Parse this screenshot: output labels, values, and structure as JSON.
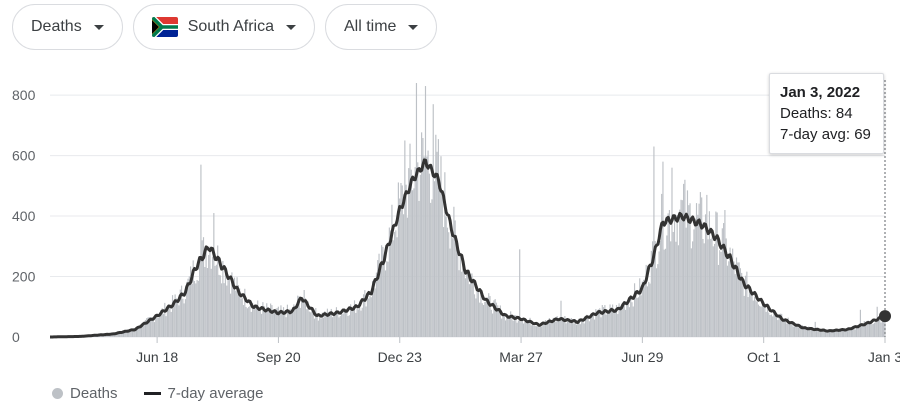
{
  "filters": {
    "metric": "Deaths",
    "country": "South Africa",
    "range": "All time"
  },
  "tooltip": {
    "date": "Jan 3, 2022",
    "deaths_line": "Deaths: 84",
    "avg_line": "7-day avg: 69"
  },
  "legend": {
    "series1": "Deaths",
    "series2": "7-day average"
  },
  "colors": {
    "bars": "#bdc1c6",
    "avg_line": "#333333",
    "grid": "#e8eaed",
    "flag_green": "#007a4d",
    "flag_red": "#de3831",
    "flag_blue": "#002395",
    "flag_yellow": "#ffb612"
  },
  "chart_data": {
    "type": "bar",
    "ylim": [
      0,
      850
    ],
    "yticks": [
      0,
      200,
      400,
      600,
      800
    ],
    "x_start": "2020-03-27",
    "x_end": "2022-01-03",
    "xticks": [
      {
        "label": "Jun 18",
        "date": "2020-06-18"
      },
      {
        "label": "Sep 20",
        "date": "2020-09-20"
      },
      {
        "label": "Dec 23",
        "date": "2020-12-23"
      },
      {
        "label": "Mar 27",
        "date": "2021-03-27"
      },
      {
        "label": "Jun 29",
        "date": "2021-06-29"
      },
      {
        "label": "Oct 1",
        "date": "2021-10-01"
      },
      {
        "label": "Jan 3",
        "date": "2022-01-03"
      }
    ],
    "series": [
      {
        "name": "7-day average",
        "points": [
          [
            "2020-03-27",
            0
          ],
          [
            "2020-04-20",
            2
          ],
          [
            "2020-05-15",
            10
          ],
          [
            "2020-06-01",
            25
          ],
          [
            "2020-06-18",
            70
          ],
          [
            "2020-07-01",
            110
          ],
          [
            "2020-07-10",
            150
          ],
          [
            "2020-07-18",
            230
          ],
          [
            "2020-07-28",
            300
          ],
          [
            "2020-08-08",
            230
          ],
          [
            "2020-08-20",
            150
          ],
          [
            "2020-09-01",
            100
          ],
          [
            "2020-09-20",
            80
          ],
          [
            "2020-10-01",
            85
          ],
          [
            "2020-10-08",
            130
          ],
          [
            "2020-10-20",
            70
          ],
          [
            "2020-11-05",
            80
          ],
          [
            "2020-11-20",
            100
          ],
          [
            "2020-12-01",
            150
          ],
          [
            "2020-12-10",
            250
          ],
          [
            "2020-12-23",
            420
          ],
          [
            "2021-01-02",
            520
          ],
          [
            "2021-01-12",
            580
          ],
          [
            "2021-01-22",
            520
          ],
          [
            "2021-02-01",
            360
          ],
          [
            "2021-02-12",
            220
          ],
          [
            "2021-02-28",
            120
          ],
          [
            "2021-03-15",
            70
          ],
          [
            "2021-03-27",
            60
          ],
          [
            "2021-04-10",
            40
          ],
          [
            "2021-04-25",
            60
          ],
          [
            "2021-05-10",
            50
          ],
          [
            "2021-05-25",
            80
          ],
          [
            "2021-06-10",
            90
          ],
          [
            "2021-06-29",
            160
          ],
          [
            "2021-07-08",
            270
          ],
          [
            "2021-07-15",
            380
          ],
          [
            "2021-07-30",
            400
          ],
          [
            "2021-08-15",
            370
          ],
          [
            "2021-08-25",
            330
          ],
          [
            "2021-09-05",
            260
          ],
          [
            "2021-09-15",
            180
          ],
          [
            "2021-10-01",
            110
          ],
          [
            "2021-10-15",
            60
          ],
          [
            "2021-11-01",
            30
          ],
          [
            "2021-11-20",
            20
          ],
          [
            "2021-12-05",
            25
          ],
          [
            "2021-12-20",
            45
          ],
          [
            "2022-01-03",
            69
          ]
        ]
      },
      {
        "name": "Deaths",
        "peaks": [
          [
            "2020-07-22",
            570
          ],
          [
            "2020-08-01",
            410
          ],
          [
            "2020-12-27",
            650
          ],
          [
            "2021-01-05",
            840
          ],
          [
            "2021-01-12",
            830
          ],
          [
            "2021-01-18",
            770
          ],
          [
            "2021-03-26",
            290
          ],
          [
            "2021-04-27",
            120
          ],
          [
            "2021-07-08",
            630
          ],
          [
            "2021-07-15",
            580
          ],
          [
            "2021-07-22",
            560
          ],
          [
            "2021-08-01",
            520
          ],
          [
            "2021-08-18",
            470
          ],
          [
            "2021-09-01",
            420
          ],
          [
            "2021-11-10",
            50
          ],
          [
            "2021-12-15",
            90
          ],
          [
            "2021-12-28",
            100
          ],
          [
            "2022-01-03",
            84
          ]
        ]
      }
    ]
  }
}
